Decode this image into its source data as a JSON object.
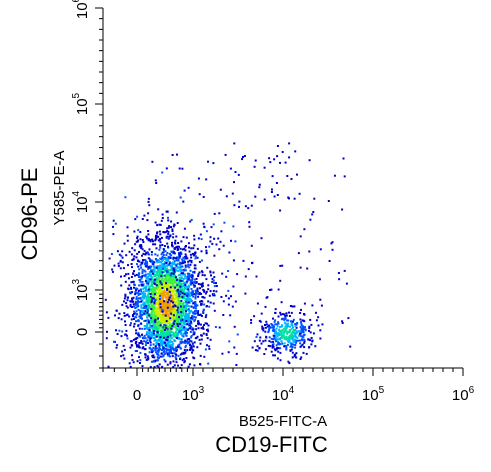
{
  "chart_data": {
    "type": "scatter",
    "subtype": "flow-cytometry-density-dot-plot",
    "title": "",
    "xlabel": "CD19-FITC",
    "xlabel_inner": "B525-FITC-A",
    "ylabel": "CD96-PE",
    "ylabel_inner": "Y585-PE-A",
    "x_scale": "biexponential",
    "y_scale": "biexponential",
    "x_ticks": [
      {
        "label": "0",
        "exp": ""
      },
      {
        "label": "10",
        "exp": "3"
      },
      {
        "label": "10",
        "exp": "4"
      },
      {
        "label": "10",
        "exp": "5"
      },
      {
        "label": "10",
        "exp": "6"
      }
    ],
    "y_ticks": [
      {
        "label": "0",
        "exp": ""
      },
      {
        "label": "10",
        "exp": "3"
      },
      {
        "label": "10",
        "exp": "4"
      },
      {
        "label": "10",
        "exp": "5"
      },
      {
        "label": "10",
        "exp": "6"
      }
    ],
    "xlim": [
      -300,
      1000000
    ],
    "ylim": [
      -300,
      1000000
    ],
    "grid": false,
    "legend": "none",
    "density_colors": [
      "#0000c8",
      "#0050ff",
      "#00b4ff",
      "#00e0a0",
      "#40f040",
      "#c8f000",
      "#f0a000"
    ],
    "populations": [
      {
        "name": "CD19-negative cluster",
        "center_x": 500,
        "center_y": 700,
        "approx_fraction": 0.85
      },
      {
        "name": "CD19-positive cluster",
        "center_x": 13000,
        "center_y": 0,
        "approx_fraction": 0.12
      },
      {
        "name": "sparse events",
        "approx_fraction": 0.03
      }
    ]
  }
}
